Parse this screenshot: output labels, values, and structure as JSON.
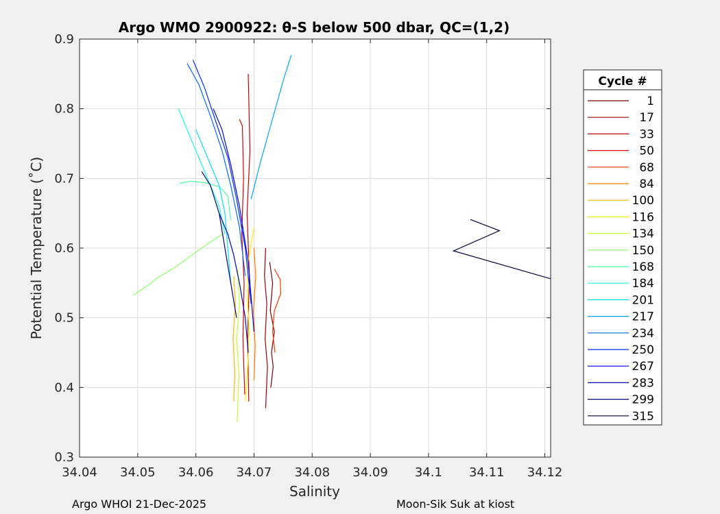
{
  "chart_data": {
    "type": "line",
    "title": "Argo WMO 2900922: θ-S below 500 dbar,  QC=(1,2)",
    "xlabel": "Salinity",
    "ylabel": "Potential Temperature (˚C)",
    "xlim": [
      34.04,
      34.121
    ],
    "ylim": [
      0.3,
      0.9
    ],
    "xticks": [
      "34.04",
      "34.05",
      "34.06",
      "34.07",
      "34.08",
      "34.09",
      "34.1",
      "34.11",
      "34.12"
    ],
    "yticks": [
      "0.3",
      "0.4",
      "0.5",
      "0.6",
      "0.7",
      "0.8",
      "0.9"
    ],
    "grid": true,
    "legend": {
      "title": "Cycle #",
      "position": "right"
    },
    "series": [
      {
        "name": "1",
        "color": "#7f0000",
        "x": [
          34.0727,
          34.0732,
          34.0728,
          34.0735,
          34.073,
          34.0733,
          34.0729
        ],
        "y": [
          0.58,
          0.55,
          0.51,
          0.48,
          0.45,
          0.43,
          0.4
        ]
      },
      {
        "name": "17",
        "color": "#a30000",
        "x": [
          34.072,
          34.0718,
          34.0722,
          34.0719,
          34.0723,
          34.072
        ],
        "y": [
          0.6,
          0.56,
          0.52,
          0.47,
          0.43,
          0.37
        ]
      },
      {
        "name": "33",
        "color": "#c80000",
        "x": [
          34.069,
          34.0693,
          34.0688,
          34.0692,
          34.0689,
          34.0691
        ],
        "y": [
          0.85,
          0.74,
          0.65,
          0.56,
          0.47,
          0.38
        ]
      },
      {
        "name": "50",
        "color": "#e00000",
        "x": [
          34.0675,
          34.068,
          34.0682,
          34.0679,
          34.0683,
          34.0681,
          34.0684
        ],
        "y": [
          0.785,
          0.775,
          0.7,
          0.62,
          0.55,
          0.47,
          0.39
        ]
      },
      {
        "name": "68",
        "color": "#ff3500",
        "x": [
          34.0735,
          34.0745,
          34.0746,
          34.0735,
          34.0732,
          34.0736
        ],
        "y": [
          0.57,
          0.555,
          0.535,
          0.51,
          0.48,
          0.45
        ]
      },
      {
        "name": "84",
        "color": "#ff7a00",
        "x": [
          34.07,
          34.0703,
          34.0699,
          34.0702,
          34.07
        ],
        "y": [
          0.6,
          0.56,
          0.51,
          0.46,
          0.41
        ]
      },
      {
        "name": "100",
        "color": "#ffb600",
        "x": [
          34.0665,
          34.0668,
          34.0664,
          34.0667,
          34.0665
        ],
        "y": [
          0.56,
          0.52,
          0.47,
          0.42,
          0.38
        ]
      },
      {
        "name": "116",
        "color": "#fff200",
        "x": [
          34.07,
          34.069,
          34.0688,
          34.0692,
          34.0689,
          34.0685
        ],
        "y": [
          0.63,
          0.58,
          0.53,
          0.48,
          0.43,
          0.38
        ]
      },
      {
        "name": "134",
        "color": "#c4ff33",
        "x": [
          34.0672,
          34.0675,
          34.067,
          34.0674,
          34.0671
        ],
        "y": [
          0.57,
          0.52,
          0.47,
          0.42,
          0.35
        ]
      },
      {
        "name": "150",
        "color": "#8aff6a",
        "x": [
          34.0492,
          34.052,
          34.0535,
          34.056,
          34.059,
          34.0615,
          34.0645
        ],
        "y": [
          0.532,
          0.548,
          0.558,
          0.57,
          0.588,
          0.603,
          0.62
        ]
      },
      {
        "name": "168",
        "color": "#4cffa6",
        "x": [
          34.0572,
          34.059,
          34.0615,
          34.064,
          34.0655,
          34.066
        ],
        "y": [
          0.693,
          0.696,
          0.694,
          0.688,
          0.675,
          0.64
        ]
      },
      {
        "name": "184",
        "color": "#10ffe2",
        "x": [
          34.057,
          34.0585,
          34.06,
          34.062,
          34.064,
          34.065
        ],
        "y": [
          0.8,
          0.77,
          0.74,
          0.7,
          0.66,
          0.62
        ]
      },
      {
        "name": "201",
        "color": "#00e0ff",
        "x": [
          34.06,
          34.062,
          34.064,
          34.065,
          34.0655,
          34.066
        ],
        "y": [
          0.77,
          0.73,
          0.69,
          0.65,
          0.6,
          0.55
        ]
      },
      {
        "name": "217",
        "color": "#00a4ff",
        "x": [
          34.0695,
          34.071,
          34.073,
          34.075,
          34.0764
        ],
        "y": [
          0.67,
          0.72,
          0.78,
          0.84,
          0.877
        ]
      },
      {
        "name": "234",
        "color": "#0068ff",
        "x": [
          34.0585,
          34.0605,
          34.0625,
          34.0645,
          34.066,
          34.0675,
          34.0685
        ],
        "y": [
          0.865,
          0.835,
          0.79,
          0.74,
          0.69,
          0.63,
          0.56
        ]
      },
      {
        "name": "250",
        "color": "#002cff",
        "x": [
          34.0595,
          34.0615,
          34.0635,
          34.0655,
          34.067,
          34.0685,
          34.0695
        ],
        "y": [
          0.87,
          0.83,
          0.78,
          0.73,
          0.67,
          0.6,
          0.52
        ]
      },
      {
        "name": "267",
        "color": "#0000f0",
        "x": [
          34.063,
          34.0645,
          34.066,
          34.0675,
          34.069,
          34.07
        ],
        "y": [
          0.8,
          0.77,
          0.72,
          0.66,
          0.58,
          0.48
        ]
      },
      {
        "name": "283",
        "color": "#0000b4",
        "x": [
          34.064,
          34.0655,
          34.0665,
          34.0675,
          34.0685,
          34.069
        ],
        "y": [
          0.65,
          0.62,
          0.59,
          0.55,
          0.5,
          0.45
        ]
      },
      {
        "name": "299",
        "color": "#000078",
        "x": [
          34.061,
          34.0625,
          34.064,
          34.065,
          34.066,
          34.067
        ],
        "y": [
          0.71,
          0.69,
          0.65,
          0.6,
          0.55,
          0.5
        ]
      },
      {
        "name": "315",
        "color": "#00003c",
        "x": [
          34.1072,
          34.1122,
          34.1043,
          34.121
        ],
        "y": [
          0.641,
          0.625,
          0.596,
          0.556
        ]
      }
    ]
  },
  "footer": {
    "left": "Argo WHOI 21-Dec-2025",
    "right": "Moon-Sik Suk at kiost"
  }
}
